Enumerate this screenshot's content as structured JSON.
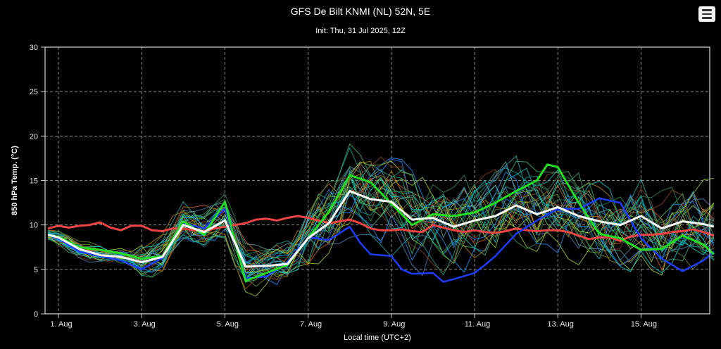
{
  "header": {
    "title": "GFS De Bilt KNMI (NL) 52N, 5E",
    "subtitle": "Init: Thu, 31 Jul 2025, 12Z"
  },
  "chart_data": {
    "type": "line",
    "xlabel": "Local time (UTC+2)",
    "ylabel": "850 hPa Temp. (°C)",
    "ylim": [
      0,
      30
    ],
    "yticks": [
      0,
      5,
      10,
      15,
      20,
      25,
      30
    ],
    "xlim": [
      0.7,
      16.8
    ],
    "xticks": [
      {
        "x": 1,
        "label": "1. Aug"
      },
      {
        "x": 3,
        "label": "3. Aug"
      },
      {
        "x": 5,
        "label": "5. Aug"
      },
      {
        "x": 7,
        "label": "7. Aug"
      },
      {
        "x": 9,
        "label": "9. Aug"
      },
      {
        "x": 11,
        "label": "11. Aug"
      },
      {
        "x": 13,
        "label": "13. Aug"
      },
      {
        "x": 15,
        "label": "15. Aug"
      }
    ],
    "grid": true,
    "colors": {
      "mean": "#ffffff",
      "control": "#22dd22",
      "operational": "#1e3cff",
      "climate": "#ee4444",
      "members": [
        "#14a0a0",
        "#1e90ff",
        "#2e8b57",
        "#9acd32",
        "#d2691e",
        "#20b2aa",
        "#4682b4",
        "#6b8e23",
        "#b8860b",
        "#3cb371",
        "#00ced1",
        "#5f9ea0",
        "#8b4513"
      ]
    },
    "series": [
      {
        "role": "climate",
        "x": [
          0.75,
          1,
          1.25,
          1.5,
          1.75,
          2,
          2.25,
          2.5,
          2.75,
          3,
          3.25,
          3.5,
          3.75,
          4,
          4.25,
          4.5,
          4.75,
          5,
          5.25,
          5.5,
          5.75,
          6,
          6.25,
          6.5,
          6.75,
          7,
          7.25,
          7.5,
          7.75,
          8,
          8.25,
          8.5,
          8.75,
          9,
          9.25,
          9.5,
          9.75,
          10,
          10.25,
          10.5,
          10.75,
          11,
          11.25,
          11.5,
          11.75,
          12,
          12.25,
          12.5,
          12.75,
          13,
          13.25,
          13.5,
          13.75,
          14,
          14.25,
          14.5,
          14.75,
          15,
          15.25,
          15.5,
          15.75,
          16,
          16.25,
          16.5,
          16.75
        ],
        "values": [
          9.6,
          9.9,
          9.7,
          9.9,
          10.0,
          10.3,
          9.7,
          9.4,
          9.9,
          9.9,
          9.4,
          9.3,
          9.6,
          9.6,
          9.4,
          9.3,
          9.6,
          9.8,
          10.0,
          10.2,
          10.6,
          10.7,
          10.5,
          10.8,
          11.0,
          10.8,
          10.5,
          10.2,
          10.4,
          10.6,
          10.2,
          9.6,
          9.4,
          9.4,
          9.5,
          9.3,
          9.2,
          10.0,
          9.7,
          9.4,
          9.2,
          9.4,
          9.2,
          9.1,
          9.3,
          9.6,
          9.4,
          9.3,
          9.4,
          9.4,
          9.2,
          8.8,
          8.4,
          8.6,
          8.6,
          8.2,
          8.7,
          8.9,
          8.9,
          9.0,
          9.2,
          9.3,
          9.5,
          9.2,
          8.8
        ]
      },
      {
        "role": "operational",
        "x": [
          0.75,
          1,
          1.5,
          2,
          2.5,
          3,
          3.5,
          4,
          4.5,
          5,
          5.25,
          5.5,
          6,
          6.5,
          7,
          7.5,
          8,
          8.25,
          8.5,
          9,
          9.25,
          9.5,
          10,
          10.25,
          10.5,
          11,
          11.25,
          11.5,
          12,
          12.5,
          13,
          13.5,
          14,
          14.5,
          15,
          15.5,
          16,
          16.5,
          16.75
        ],
        "values": [
          8.8,
          8.5,
          7.0,
          6.5,
          6.0,
          5.0,
          6.3,
          10.2,
          9.6,
          11.8,
          8.0,
          4.0,
          4.2,
          5.8,
          8.6,
          8.3,
          9.8,
          8.0,
          6.7,
          6.5,
          5.0,
          4.5,
          4.6,
          3.6,
          3.9,
          4.6,
          5.5,
          6.5,
          9.0,
          10.5,
          11.8,
          11.8,
          13.0,
          12.5,
          8.5,
          6.2,
          4.8,
          6.0,
          7.0
        ]
      },
      {
        "role": "control",
        "x": [
          0.75,
          1,
          1.5,
          2,
          2.5,
          3,
          3.5,
          4,
          4.5,
          5,
          5.25,
          5.5,
          6,
          6.5,
          7,
          7.5,
          8,
          8.5,
          9,
          9.5,
          10,
          10.5,
          11,
          11.5,
          12,
          12.5,
          12.75,
          13,
          13.5,
          14,
          14.5,
          15,
          15.5,
          16,
          16.5,
          16.75
        ],
        "values": [
          8.8,
          8.7,
          7.5,
          7.2,
          6.8,
          6.2,
          6.5,
          10.4,
          8.9,
          12.6,
          8.0,
          3.7,
          4.6,
          5.5,
          8.5,
          11.5,
          15.6,
          14.8,
          12.4,
          10.0,
          11.2,
          11.0,
          11.4,
          12.5,
          13.8,
          15.0,
          16.8,
          16.5,
          12.5,
          9.0,
          8.5,
          7.2,
          7.3,
          8.8,
          7.8,
          6.7
        ]
      },
      {
        "role": "mean",
        "x": [
          0.75,
          1,
          1.5,
          2,
          2.5,
          3,
          3.5,
          4,
          4.5,
          5,
          5.5,
          6,
          6.5,
          7,
          7.5,
          8,
          8.5,
          9,
          9.5,
          10,
          10.5,
          11,
          11.5,
          12,
          12.5,
          13,
          13.5,
          14,
          14.5,
          15,
          15.5,
          16,
          16.5,
          16.75
        ],
        "values": [
          8.9,
          8.6,
          7.3,
          6.6,
          6.4,
          5.8,
          6.4,
          10.0,
          9.2,
          10.5,
          5.3,
          5.4,
          5.6,
          8.5,
          10.2,
          13.8,
          12.9,
          12.6,
          10.6,
          10.8,
          9.8,
          10.5,
          11.0,
          12.2,
          11.2,
          12.0,
          11.0,
          10.4,
          10.0,
          11.0,
          9.6,
          10.4,
          10.1,
          9.8
        ]
      }
    ]
  }
}
